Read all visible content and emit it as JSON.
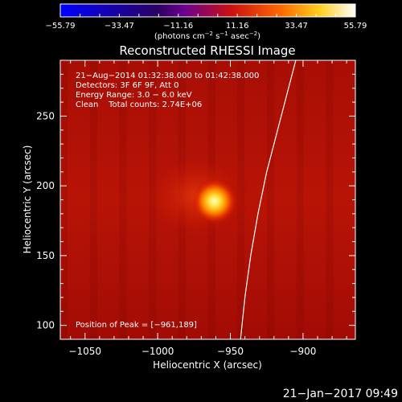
{
  "colorbar": {
    "ticks": [
      "−55.79",
      "−33.47",
      "−11.16",
      "11.16",
      "33.47",
      "55.79"
    ],
    "units_main": "(photons cm",
    "units_sup1": "−2",
    "units_mid": " s",
    "units_sup2": "−1",
    "units_mid2": " asec",
    "units_sup3": "−2",
    "units_end": ")"
  },
  "chart_data": {
    "type": "heatmap",
    "title": "Reconstructed RHESSI Image",
    "xlabel": "Heliocentric X (arcsec)",
    "ylabel": "Heliocentric Y (arcsec)",
    "xlim": [
      -1067,
      -864
    ],
    "ylim": [
      90,
      290
    ],
    "x_ticks": [
      -1050,
      -1000,
      -950,
      -900
    ],
    "x_tick_labels": [
      "−1050",
      "−1000",
      "−950",
      "−900"
    ],
    "y_ticks": [
      100,
      150,
      200,
      250
    ],
    "y_tick_labels": [
      "100",
      "150",
      "200",
      "250"
    ],
    "color_range": [
      -55.79,
      55.79
    ],
    "peak": {
      "x": -961,
      "y": 189
    },
    "limb": [
      {
        "x": -905,
        "y": 290
      },
      {
        "x": -915,
        "y": 250
      },
      {
        "x": -925,
        "y": 210
      },
      {
        "x": -931,
        "y": 180
      },
      {
        "x": -936,
        "y": 150
      },
      {
        "x": -940,
        "y": 120
      },
      {
        "x": -943,
        "y": 90
      }
    ],
    "annotations": [
      "21−Aug−2014 01:32:38.000 to 01:42:38.000",
      "Detectors: 3F 6F 9F, Att 0",
      "Energy Range: 3.0 − 6.0 keV",
      "Clean    Total counts: 2.74E+06"
    ],
    "peak_label": "Position of Peak = [−961,189]"
  },
  "footer": {
    "timestamp": "21−Jan−2017 09:49"
  }
}
